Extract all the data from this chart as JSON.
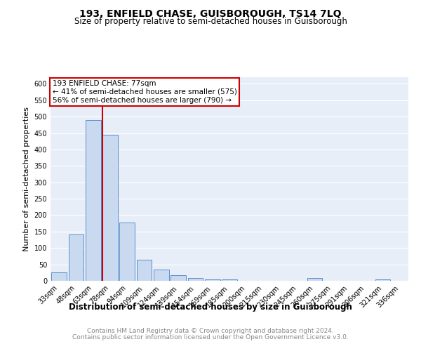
{
  "title": "193, ENFIELD CHASE, GUISBOROUGH, TS14 7LQ",
  "subtitle": "Size of property relative to semi-detached houses in Guisborough",
  "xlabel": "Distribution of semi-detached houses by size in Guisborough",
  "ylabel": "Number of semi-detached properties",
  "bar_labels": [
    "33sqm",
    "48sqm",
    "63sqm",
    "78sqm",
    "94sqm",
    "109sqm",
    "124sqm",
    "139sqm",
    "154sqm",
    "169sqm",
    "185sqm",
    "200sqm",
    "215sqm",
    "230sqm",
    "245sqm",
    "260sqm",
    "275sqm",
    "291sqm",
    "306sqm",
    "321sqm",
    "336sqm"
  ],
  "bar_values": [
    25,
    142,
    490,
    444,
    178,
    65,
    35,
    17,
    8,
    5,
    4,
    0,
    0,
    0,
    0,
    8,
    0,
    0,
    0,
    5,
    0
  ],
  "bar_color": "#c9d9f0",
  "bar_edge_color": "#5b8fcc",
  "vline_x_index": 3,
  "vline_color": "#cc0000",
  "vline_label": "193 ENFIELD CHASE: 77sqm",
  "annotation_smaller": "← 41% of semi-detached houses are smaller (575)",
  "annotation_larger": "56% of semi-detached houses are larger (790) →",
  "annotation_box_color": "#ffffff",
  "annotation_box_edge_color": "#cc0000",
  "ylim": [
    0,
    620
  ],
  "yticks": [
    0,
    50,
    100,
    150,
    200,
    250,
    300,
    350,
    400,
    450,
    500,
    550,
    600
  ],
  "background_color": "#e8eef8",
  "grid_color": "#ffffff",
  "footer_line1": "Contains HM Land Registry data © Crown copyright and database right 2024.",
  "footer_line2": "Contains public sector information licensed under the Open Government Licence v3.0.",
  "title_fontsize": 10,
  "subtitle_fontsize": 8.5,
  "xlabel_fontsize": 8.5,
  "ylabel_fontsize": 8,
  "tick_fontsize": 7,
  "ann_fontsize": 7.5,
  "footer_fontsize": 6.5
}
